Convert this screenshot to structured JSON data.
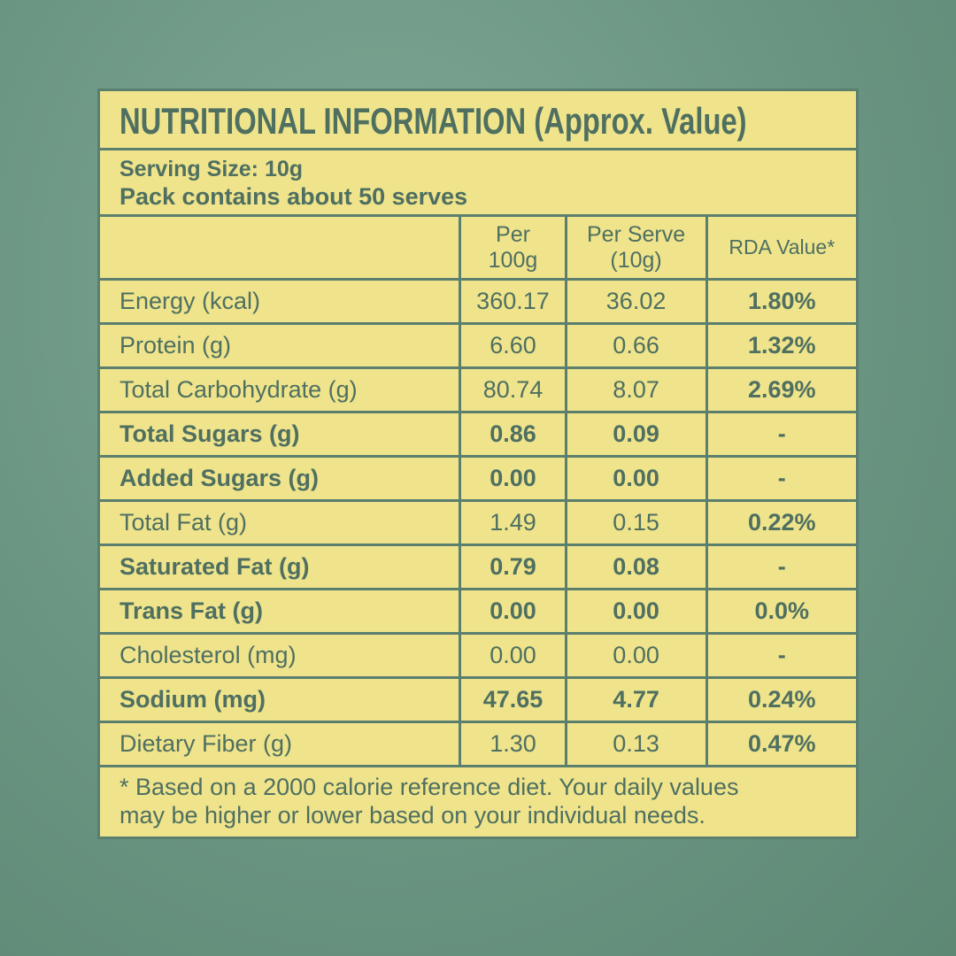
{
  "header": {
    "title": "NUTRITIONAL INFORMATION (Approx. Value)",
    "serving_size": "Serving Size: 10g",
    "pack_contains": "Pack contains about 50 serves"
  },
  "table": {
    "columns": [
      [
        "Per",
        "100g"
      ],
      [
        "Per Serve",
        "(10g)"
      ],
      [
        "RDA Value*"
      ]
    ],
    "rows": [
      {
        "cells": [
          "Energy (kcal)",
          "360.17",
          "36.02",
          "1.80%"
        ],
        "bold": false
      },
      {
        "cells": [
          "Protein (g)",
          "6.60",
          "0.66",
          "1.32%"
        ],
        "bold": false
      },
      {
        "cells": [
          "Total Carbohydrate (g)",
          "80.74",
          "8.07",
          "2.69%"
        ],
        "bold": false
      },
      {
        "cells": [
          "Total Sugars (g)",
          "0.86",
          "0.09",
          "-"
        ],
        "bold": true
      },
      {
        "cells": [
          "Added Sugars (g)",
          "0.00",
          "0.00",
          "-"
        ],
        "bold": true
      },
      {
        "cells": [
          "Total Fat (g)",
          "1.49",
          "0.15",
          "0.22%"
        ],
        "bold": false
      },
      {
        "cells": [
          "Saturated Fat (g)",
          "0.79",
          "0.08",
          "-"
        ],
        "bold": true
      },
      {
        "cells": [
          "Trans Fat (g)",
          "0.00",
          "0.00",
          "0.0%"
        ],
        "bold": true
      },
      {
        "cells": [
          "Cholesterol (mg)",
          "0.00",
          "0.00",
          "-"
        ],
        "bold": false
      },
      {
        "cells": [
          "Sodium (mg)",
          "47.65",
          "4.77",
          "0.24%"
        ],
        "bold": true
      },
      {
        "cells": [
          "Dietary Fiber (g)",
          "1.30",
          "0.13",
          "0.47%"
        ],
        "bold": false
      }
    ]
  },
  "footnote": [
    "* Based on a 2000 calorie reference diet. Your daily values",
    "may be higher or lower based on your individual needs."
  ]
}
